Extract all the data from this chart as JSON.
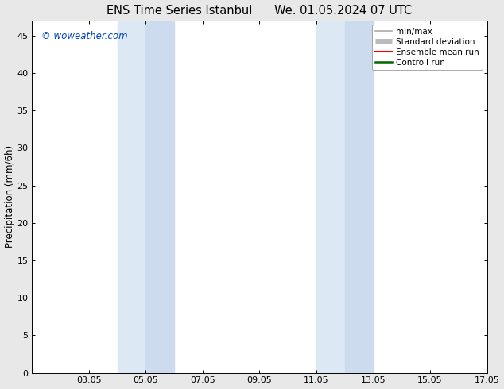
{
  "title": "ENS Time Series Istanbul      We. 01.05.2024 07 UTC",
  "ylabel": "Precipitation (mm/6h)",
  "background_color": "#e8e8e8",
  "plot_bg_color": "#ffffff",
  "ylim": [
    0,
    47
  ],
  "yticks": [
    0,
    5,
    10,
    15,
    20,
    25,
    30,
    35,
    40,
    45
  ],
  "xtick_positions": [
    3,
    5,
    7,
    9,
    11,
    13,
    15,
    17
  ],
  "xtick_labels": [
    "03.05",
    "05.05",
    "07.05",
    "09.05",
    "11.05",
    "13.05",
    "15.05",
    "17.05"
  ],
  "xlim": [
    1,
    17
  ],
  "watermark": "© woweather.com",
  "watermark_color": "#0044bb",
  "shaded_regions": [
    {
      "xstart": 4.0,
      "xend": 5.0,
      "color": "#dce9f5"
    },
    {
      "xstart": 5.0,
      "xend": 6.0,
      "color": "#ccdcee"
    },
    {
      "xstart": 11.0,
      "xend": 12.0,
      "color": "#dce9f5"
    },
    {
      "xstart": 12.0,
      "xend": 13.0,
      "color": "#ccdcee"
    }
  ],
  "legend_entries": [
    {
      "label": "min/max",
      "color": "#aaaaaa",
      "lw": 1.2,
      "style": "solid"
    },
    {
      "label": "Standard deviation",
      "color": "#bbbbbb",
      "lw": 5,
      "style": "solid"
    },
    {
      "label": "Ensemble mean run",
      "color": "#ff0000",
      "lw": 1.5,
      "style": "solid"
    },
    {
      "label": "Controll run",
      "color": "#006600",
      "lw": 1.8,
      "style": "solid"
    }
  ],
  "title_fontsize": 10.5,
  "label_fontsize": 8.5,
  "tick_fontsize": 8,
  "legend_fontsize": 7.5
}
